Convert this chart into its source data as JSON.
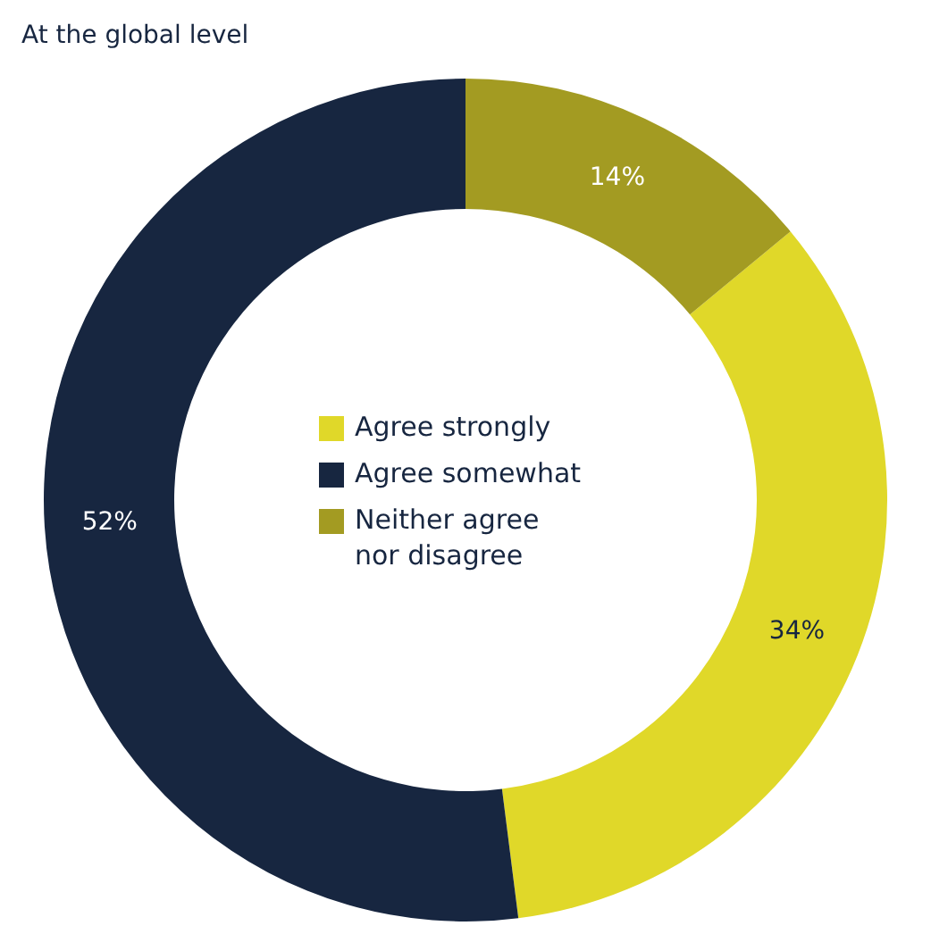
{
  "chart_data": {
    "type": "donut",
    "title": "At the global level",
    "categories": [
      "Agree strongly",
      "Agree somewhat",
      "Neither agree nor disagree"
    ],
    "values": [
      34,
      52,
      14
    ],
    "colors": [
      "#e0d829",
      "#172640",
      "#a39b22"
    ],
    "value_labels": [
      "34%",
      "52%",
      "14%"
    ],
    "legend": "center"
  }
}
